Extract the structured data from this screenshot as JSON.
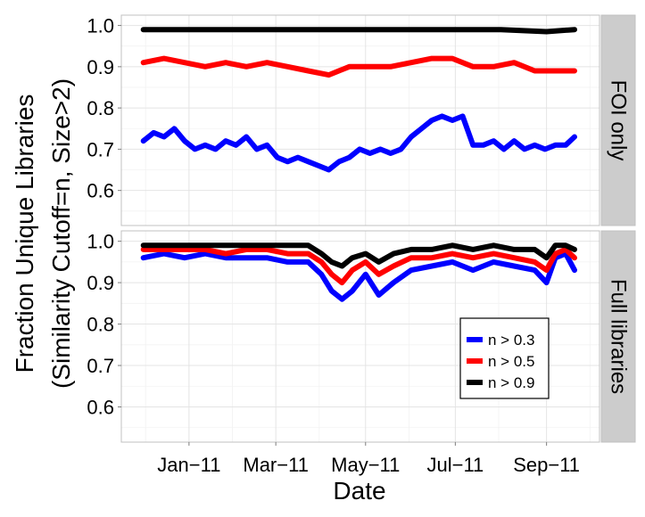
{
  "chart_data": {
    "type": "line",
    "title": "",
    "xlabel": "Date",
    "ylabel": [
      "Fraction Unique Libraries",
      "(Similarity Cutoff=n, Size>2)"
    ],
    "x_range": [
      "2010-11-16",
      "2011-10-07"
    ],
    "x_ticks": [
      {
        "date": "2011-01-01",
        "label": "Jan−11"
      },
      {
        "date": "2011-03-01",
        "label": "Mar−11"
      },
      {
        "date": "2011-05-01",
        "label": "May−11"
      },
      {
        "date": "2011-07-01",
        "label": "Jul−11"
      },
      {
        "date": "2011-09-01",
        "label": "Sep−11"
      }
    ],
    "y_range": [
      0.515,
      1.025
    ],
    "y_ticks": [
      {
        "value": 0.6,
        "label": "0.6"
      },
      {
        "value": 0.7,
        "label": "0.7"
      },
      {
        "value": 0.8,
        "label": "0.8"
      },
      {
        "value": 0.9,
        "label": "0.9"
      },
      {
        "value": 1.0,
        "label": "1.0"
      }
    ],
    "grid": true,
    "legend": {
      "placement": "bottom-right of lower panel",
      "entries": [
        {
          "label": "n > 0.3",
          "color": "#0000ff"
        },
        {
          "label": "n > 0.5",
          "color": "#ff0000"
        },
        {
          "label": "n > 0.9",
          "color": "#000000"
        }
      ]
    },
    "panels": [
      {
        "strip": "FOI only",
        "series": [
          {
            "name": "n > 0.3",
            "color": "#0000ff",
            "x": [
              "2010-12-01",
              "2010-12-08",
              "2010-12-15",
              "2010-12-22",
              "2010-12-29",
              "2011-01-05",
              "2011-01-12",
              "2011-01-19",
              "2011-01-26",
              "2011-02-02",
              "2011-02-09",
              "2011-02-16",
              "2011-02-23",
              "2011-03-02",
              "2011-03-09",
              "2011-03-16",
              "2011-03-23",
              "2011-03-30",
              "2011-04-06",
              "2011-04-13",
              "2011-04-20",
              "2011-04-27",
              "2011-05-04",
              "2011-05-11",
              "2011-05-18",
              "2011-05-25",
              "2011-06-01",
              "2011-06-08",
              "2011-06-15",
              "2011-06-22",
              "2011-06-29",
              "2011-07-06",
              "2011-07-13",
              "2011-07-20",
              "2011-07-27",
              "2011-08-03",
              "2011-08-10",
              "2011-08-17",
              "2011-08-24",
              "2011-08-31",
              "2011-09-07",
              "2011-09-14",
              "2011-09-20"
            ],
            "y": [
              0.72,
              0.74,
              0.73,
              0.75,
              0.72,
              0.7,
              0.71,
              0.7,
              0.72,
              0.71,
              0.73,
              0.7,
              0.71,
              0.68,
              0.67,
              0.68,
              0.67,
              0.66,
              0.65,
              0.67,
              0.68,
              0.7,
              0.69,
              0.7,
              0.69,
              0.7,
              0.73,
              0.75,
              0.77,
              0.78,
              0.77,
              0.78,
              0.71,
              0.71,
              0.72,
              0.7,
              0.72,
              0.7,
              0.71,
              0.7,
              0.71,
              0.71,
              0.73
            ]
          },
          {
            "name": "n > 0.5",
            "color": "#ff0000",
            "x": [
              "2010-12-01",
              "2010-12-15",
              "2010-12-29",
              "2011-01-12",
              "2011-01-26",
              "2011-02-09",
              "2011-02-23",
              "2011-03-09",
              "2011-03-23",
              "2011-04-06",
              "2011-04-20",
              "2011-05-04",
              "2011-05-18",
              "2011-06-01",
              "2011-06-15",
              "2011-06-29",
              "2011-07-13",
              "2011-07-27",
              "2011-08-10",
              "2011-08-24",
              "2011-09-07",
              "2011-09-20"
            ],
            "y": [
              0.91,
              0.92,
              0.91,
              0.9,
              0.91,
              0.9,
              0.91,
              0.9,
              0.89,
              0.88,
              0.9,
              0.9,
              0.9,
              0.91,
              0.92,
              0.92,
              0.9,
              0.9,
              0.91,
              0.89,
              0.89,
              0.89
            ]
          },
          {
            "name": "n > 0.9",
            "color": "#000000",
            "x": [
              "2010-12-01",
              "2011-01-01",
              "2011-02-01",
              "2011-03-01",
              "2011-04-01",
              "2011-05-01",
              "2011-06-01",
              "2011-07-01",
              "2011-08-01",
              "2011-09-01",
              "2011-09-20"
            ],
            "y": [
              0.99,
              0.99,
              0.99,
              0.99,
              0.99,
              0.99,
              0.99,
              0.99,
              0.99,
              0.985,
              0.99
            ]
          }
        ]
      },
      {
        "strip": "Full libraries",
        "series": [
          {
            "name": "n > 0.3",
            "color": "#0000ff",
            "x": [
              "2010-12-01",
              "2010-12-15",
              "2010-12-29",
              "2011-01-12",
              "2011-01-26",
              "2011-02-09",
              "2011-02-23",
              "2011-03-09",
              "2011-03-23",
              "2011-04-01",
              "2011-04-08",
              "2011-04-15",
              "2011-04-22",
              "2011-05-01",
              "2011-05-10",
              "2011-05-20",
              "2011-06-01",
              "2011-06-15",
              "2011-06-29",
              "2011-07-13",
              "2011-07-27",
              "2011-08-10",
              "2011-08-24",
              "2011-09-01",
              "2011-09-07",
              "2011-09-14",
              "2011-09-20"
            ],
            "y": [
              0.96,
              0.97,
              0.96,
              0.97,
              0.96,
              0.96,
              0.96,
              0.95,
              0.95,
              0.92,
              0.88,
              0.86,
              0.88,
              0.92,
              0.87,
              0.9,
              0.93,
              0.94,
              0.95,
              0.93,
              0.95,
              0.94,
              0.93,
              0.9,
              0.96,
              0.97,
              0.93
            ]
          },
          {
            "name": "n > 0.5",
            "color": "#ff0000",
            "x": [
              "2010-12-01",
              "2010-12-15",
              "2010-12-29",
              "2011-01-12",
              "2011-01-26",
              "2011-02-09",
              "2011-02-23",
              "2011-03-09",
              "2011-03-23",
              "2011-04-01",
              "2011-04-08",
              "2011-04-15",
              "2011-04-22",
              "2011-05-01",
              "2011-05-10",
              "2011-05-20",
              "2011-06-01",
              "2011-06-15",
              "2011-06-29",
              "2011-07-13",
              "2011-07-27",
              "2011-08-10",
              "2011-08-24",
              "2011-09-01",
              "2011-09-07",
              "2011-09-14",
              "2011-09-20"
            ],
            "y": [
              0.98,
              0.98,
              0.98,
              0.98,
              0.97,
              0.98,
              0.98,
              0.97,
              0.97,
              0.95,
              0.92,
              0.9,
              0.93,
              0.95,
              0.92,
              0.94,
              0.96,
              0.96,
              0.97,
              0.96,
              0.97,
              0.96,
              0.95,
              0.93,
              0.97,
              0.98,
              0.96
            ]
          },
          {
            "name": "n > 0.9",
            "color": "#000000",
            "x": [
              "2010-12-01",
              "2010-12-15",
              "2010-12-29",
              "2011-01-12",
              "2011-01-26",
              "2011-02-09",
              "2011-02-23",
              "2011-03-09",
              "2011-03-23",
              "2011-04-01",
              "2011-04-08",
              "2011-04-15",
              "2011-04-22",
              "2011-05-01",
              "2011-05-10",
              "2011-05-20",
              "2011-06-01",
              "2011-06-15",
              "2011-06-29",
              "2011-07-13",
              "2011-07-27",
              "2011-08-10",
              "2011-08-24",
              "2011-09-01",
              "2011-09-07",
              "2011-09-14",
              "2011-09-20"
            ],
            "y": [
              0.99,
              0.99,
              0.99,
              0.99,
              0.99,
              0.99,
              0.99,
              0.99,
              0.99,
              0.97,
              0.95,
              0.94,
              0.96,
              0.97,
              0.95,
              0.97,
              0.98,
              0.98,
              0.99,
              0.98,
              0.99,
              0.98,
              0.98,
              0.96,
              0.99,
              0.99,
              0.98
            ]
          }
        ]
      }
    ]
  }
}
